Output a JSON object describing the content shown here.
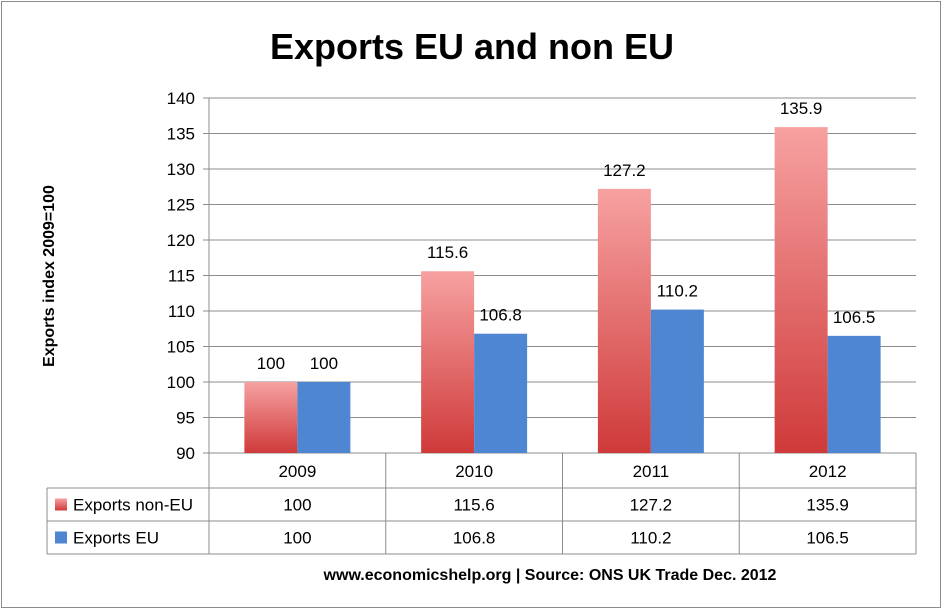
{
  "chart_data": {
    "type": "bar",
    "title": "Exports EU and non EU",
    "ylabel": "Exports index 2009=100",
    "xlabel": "",
    "categories": [
      "2009",
      "2010",
      "2011",
      "2012"
    ],
    "ylim": [
      90,
      140
    ],
    "yticks": [
      90,
      95,
      100,
      105,
      110,
      115,
      120,
      125,
      130,
      135,
      140
    ],
    "grid": true,
    "legend": "data-table",
    "series": [
      {
        "name": "Exports non-EU",
        "values": [
          100,
          115.6,
          127.2,
          135.9
        ],
        "labels": [
          "100",
          "115.6",
          "127.2",
          "135.9"
        ],
        "color_top": "#f7a1a1",
        "color_bottom": "#cf3a3a"
      },
      {
        "name": "Exports EU",
        "values": [
          100,
          106.8,
          110.2,
          106.5
        ],
        "labels": [
          "100",
          "106.8",
          "110.2",
          "106.5"
        ],
        "color": "#4f86d1"
      }
    ],
    "source_note": "www.economicshelp.org | Source: ONS UK Trade Dec. 2012"
  }
}
